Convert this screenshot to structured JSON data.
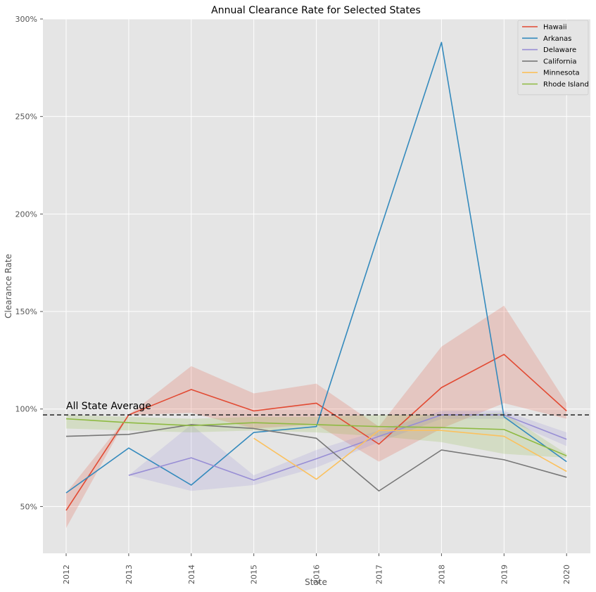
{
  "chart_data": {
    "type": "line",
    "title": "Annual Clearance Rate for Selected States",
    "xlabel": "State",
    "ylabel": "Clearance Rate",
    "x": [
      "2012",
      "2013",
      "2014",
      "2015",
      "2016",
      "2017",
      "2018",
      "2019",
      "2020"
    ],
    "ylim": [
      26,
      300
    ],
    "yticks": [
      50,
      100,
      150,
      200,
      250,
      300
    ],
    "ytick_labels": [
      "50%",
      "100%",
      "150%",
      "200%",
      "250%",
      "300%"
    ],
    "grid": true,
    "legend_position": "top-right",
    "reference_line": {
      "label": "All State Average",
      "value": 97
    },
    "series": [
      {
        "name": "Hawaii",
        "color": "#E24A33",
        "values": [
          48,
          97,
          110,
          99,
          103,
          82,
          111,
          128,
          99
        ],
        "band_low": [
          39,
          97,
          98,
          90,
          92,
          73,
          90,
          103,
          95
        ],
        "band_high": [
          57,
          97,
          122,
          108,
          113,
          91,
          132,
          153,
          103
        ]
      },
      {
        "name": "Arkanas",
        "color": "#348ABD",
        "values": [
          57,
          80,
          61,
          88,
          91,
          190,
          288,
          96,
          73
        ],
        "band_low": null,
        "band_high": null
      },
      {
        "name": "Delaware",
        "color": "#988ED5",
        "values": [
          null,
          66,
          75,
          63.5,
          74.5,
          86,
          97,
          97,
          84.5
        ],
        "band_low": [
          null,
          66,
          58,
          61,
          70,
          83,
          95,
          95,
          81
        ],
        "band_high": [
          null,
          66,
          92,
          66,
          79,
          89,
          99,
          99,
          88
        ]
      },
      {
        "name": "California",
        "color": "#777777",
        "values": [
          86,
          87,
          92,
          90,
          85,
          58,
          79,
          74,
          65
        ],
        "band_low": null,
        "band_high": null
      },
      {
        "name": "Minnesota",
        "color": "#FBC15E",
        "values": [
          null,
          null,
          null,
          85,
          64,
          89,
          89,
          86,
          68
        ],
        "band_low": null,
        "band_high": null
      },
      {
        "name": "Rhode Island",
        "color": "#8EBA42",
        "values": [
          95,
          93,
          91.5,
          93,
          92,
          91,
          90.5,
          89.5,
          76
        ],
        "band_low": [
          90,
          89,
          88,
          89,
          88,
          86,
          83,
          77,
          75
        ],
        "band_high": [
          97,
          96,
          95,
          96,
          96,
          97,
          97,
          98,
          77
        ]
      }
    ]
  }
}
